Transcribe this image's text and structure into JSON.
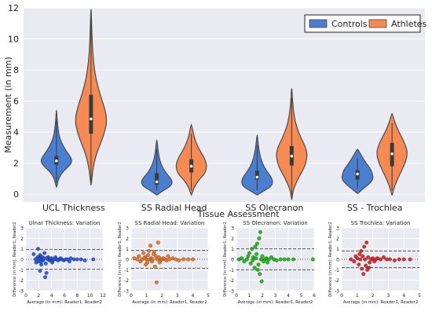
{
  "chart_data": [
    {
      "type": "violin",
      "title": "",
      "xlabel": "Tissue Assessment",
      "ylabel": "Measurement (in mm)",
      "ylim": [
        -0.5,
        12
      ],
      "yticks": [
        0,
        2,
        4,
        6,
        8,
        10,
        12
      ],
      "grid": true,
      "legend_position": "top-right",
      "categories": [
        "UCL Thickness",
        "SS Radial Head",
        "SS Olecranon",
        "SS - Trochlea"
      ],
      "series": [
        {
          "name": "Controls",
          "color": "#4a7fcf",
          "groups": [
            {
              "min": 0.45,
              "max": 5.4,
              "q1": 1.9,
              "median": 2.15,
              "q3": 2.45,
              "profile": [
                [
                  0.45,
                  0.02
                ],
                [
                  0.9,
                  0.1
                ],
                [
                  1.4,
                  0.35
                ],
                [
                  1.8,
                  0.8
                ],
                [
                  2.1,
                  1.0
                ],
                [
                  2.4,
                  0.9
                ],
                [
                  2.8,
                  0.6
                ],
                [
                  3.3,
                  0.32
                ],
                [
                  3.8,
                  0.16
                ],
                [
                  4.4,
                  0.08
                ],
                [
                  5.0,
                  0.03
                ],
                [
                  5.4,
                  0.01
                ]
              ]
            },
            {
              "min": -0.05,
              "max": 3.5,
              "q1": 0.6,
              "median": 0.8,
              "q3": 1.35,
              "profile": [
                [
                  -0.05,
                  0.02
                ],
                [
                  0.2,
                  0.35
                ],
                [
                  0.5,
                  0.85
                ],
                [
                  0.75,
                  1.0
                ],
                [
                  1.0,
                  0.9
                ],
                [
                  1.4,
                  0.55
                ],
                [
                  1.9,
                  0.28
                ],
                [
                  2.4,
                  0.14
                ],
                [
                  3.0,
                  0.06
                ],
                [
                  3.5,
                  0.01
                ]
              ]
            },
            {
              "min": -0.05,
              "max": 3.8,
              "q1": 0.95,
              "median": 1.1,
              "q3": 1.5,
              "profile": [
                [
                  -0.05,
                  0.02
                ],
                [
                  0.2,
                  0.4
                ],
                [
                  0.5,
                  0.9
                ],
                [
                  0.8,
                  1.0
                ],
                [
                  1.1,
                  0.9
                ],
                [
                  1.5,
                  0.6
                ],
                [
                  2.0,
                  0.32
                ],
                [
                  2.6,
                  0.16
                ],
                [
                  3.2,
                  0.07
                ],
                [
                  3.8,
                  0.01
                ]
              ]
            },
            {
              "min": 0.05,
              "max": 2.9,
              "q1": 0.95,
              "median": 1.3,
              "q3": 1.55,
              "profile": [
                [
                  0.05,
                  0.03
                ],
                [
                  0.35,
                  0.35
                ],
                [
                  0.7,
                  0.8
                ],
                [
                  1.0,
                  1.0
                ],
                [
                  1.3,
                  0.95
                ],
                [
                  1.6,
                  0.85
                ],
                [
                  2.0,
                  0.55
                ],
                [
                  2.4,
                  0.3
                ],
                [
                  2.9,
                  0.02
                ]
              ]
            }
          ]
        },
        {
          "name": "Athletes",
          "color": "#f58a55",
          "groups": [
            {
              "min": 0.6,
              "max": 11.9,
              "q1": 3.9,
              "median": 4.85,
              "q3": 6.4,
              "profile": [
                [
                  0.6,
                  0.02
                ],
                [
                  1.5,
                  0.1
                ],
                [
                  2.5,
                  0.3
                ],
                [
                  3.5,
                  0.7
                ],
                [
                  4.3,
                  0.95
                ],
                [
                  4.9,
                  1.0
                ],
                [
                  5.6,
                  0.85
                ],
                [
                  6.5,
                  0.55
                ],
                [
                  7.5,
                  0.3
                ],
                [
                  8.5,
                  0.16
                ],
                [
                  9.5,
                  0.09
                ],
                [
                  10.5,
                  0.05
                ],
                [
                  11.9,
                  0.01
                ]
              ]
            },
            {
              "min": -0.05,
              "max": 4.5,
              "q1": 1.4,
              "median": 1.8,
              "q3": 2.25,
              "profile": [
                [
                  -0.05,
                  0.02
                ],
                [
                  0.4,
                  0.15
                ],
                [
                  0.9,
                  0.45
                ],
                [
                  1.3,
                  0.85
                ],
                [
                  1.8,
                  1.0
                ],
                [
                  2.3,
                  0.85
                ],
                [
                  2.8,
                  0.55
                ],
                [
                  3.3,
                  0.3
                ],
                [
                  3.8,
                  0.15
                ],
                [
                  4.5,
                  0.01
                ]
              ]
            },
            {
              "min": -0.35,
              "max": 6.8,
              "q1": 1.85,
              "median": 2.45,
              "q3": 3.1,
              "profile": [
                [
                  -0.35,
                  0.01
                ],
                [
                  0.3,
                  0.1
                ],
                [
                  1.0,
                  0.4
                ],
                [
                  1.7,
                  0.8
                ],
                [
                  2.4,
                  1.0
                ],
                [
                  3.0,
                  0.9
                ],
                [
                  3.6,
                  0.6
                ],
                [
                  4.3,
                  0.32
                ],
                [
                  5.0,
                  0.16
                ],
                [
                  5.8,
                  0.07
                ],
                [
                  6.8,
                  0.01
                ]
              ]
            },
            {
              "min": -0.05,
              "max": 5.2,
              "q1": 1.8,
              "median": 2.6,
              "q3": 3.3,
              "profile": [
                [
                  -0.05,
                  0.02
                ],
                [
                  0.5,
                  0.15
                ],
                [
                  1.2,
                  0.45
                ],
                [
                  1.9,
                  0.8
                ],
                [
                  2.6,
                  1.0
                ],
                [
                  3.2,
                  0.85
                ],
                [
                  3.8,
                  0.55
                ],
                [
                  4.4,
                  0.25
                ],
                [
                  5.2,
                  0.01
                ]
              ]
            }
          ]
        }
      ]
    },
    {
      "type": "scatter",
      "title": "Ulnar Thickness: Variation",
      "xlabel": "Average (in mm): Reader1, Reader2",
      "ylabel": "Difference (in mm): Reader1, Reader2",
      "xlim": [
        0,
        12
      ],
      "ylim": [
        -3,
        3
      ],
      "xticks": [
        0,
        2,
        4,
        6,
        8,
        10,
        12
      ],
      "yticks": [
        -3,
        -2,
        -1,
        0,
        1,
        2,
        3
      ],
      "color": "#1f4fd6",
      "mean_line": 0,
      "loa_upper": 0.95,
      "loa_lower": -0.95,
      "points": [
        [
          1.2,
          0.5
        ],
        [
          1.5,
          0.0
        ],
        [
          1.6,
          -0.3
        ],
        [
          1.8,
          0.2
        ],
        [
          2.0,
          -0.2
        ],
        [
          2.1,
          0.1
        ],
        [
          2.2,
          -1.1
        ],
        [
          2.3,
          0.3
        ],
        [
          2.4,
          -0.5
        ],
        [
          2.5,
          0.0
        ],
        [
          2.6,
          0.2
        ],
        [
          2.7,
          -0.1
        ],
        [
          2.8,
          0.1
        ],
        [
          3.0,
          -1.7
        ],
        [
          3.2,
          -1.3
        ],
        [
          3.4,
          0.0
        ],
        [
          3.5,
          0.2
        ],
        [
          3.7,
          -0.1
        ],
        [
          3.8,
          0.0
        ],
        [
          4.0,
          0.1
        ],
        [
          4.2,
          -0.1
        ],
        [
          4.4,
          0.0
        ],
        [
          4.6,
          0.2
        ],
        [
          4.8,
          0.0
        ],
        [
          5.0,
          -0.1
        ],
        [
          5.2,
          0.0
        ],
        [
          5.4,
          0.1
        ],
        [
          5.6,
          0.0
        ],
        [
          5.9,
          -0.1
        ],
        [
          6.2,
          0.0
        ],
        [
          6.5,
          0.0
        ],
        [
          7.0,
          0.1
        ],
        [
          7.5,
          0.0
        ],
        [
          8.0,
          0.0
        ],
        [
          8.6,
          0.0
        ],
        [
          9.2,
          -0.1
        ],
        [
          10.5,
          0.0
        ],
        [
          2.9,
          0.6
        ],
        [
          1.9,
          1.0
        ],
        [
          2.2,
          0.4
        ],
        [
          3.1,
          -0.4
        ],
        [
          4.1,
          -0.3
        ],
        [
          6.8,
          -0.2
        ],
        [
          2.05,
          0.0
        ],
        [
          2.35,
          -0.25
        ],
        [
          3.3,
          0.15
        ]
      ]
    },
    {
      "type": "scatter",
      "title": "SS Radial Head: Variation",
      "xlabel": "Average (in mm): Reader1, Reader2",
      "ylabel": "Difference (in mm): Reader1, Reader2",
      "xlim": [
        0,
        5
      ],
      "ylim": [
        -3,
        3
      ],
      "xticks": [
        0,
        1,
        2,
        3,
        4,
        5
      ],
      "yticks": [
        -3,
        -2,
        -1,
        0,
        1,
        2,
        3
      ],
      "color": "#e8711c",
      "mean_line": 0,
      "loa_upper": 0.85,
      "loa_lower": -0.85,
      "points": [
        [
          0.2,
          0.1
        ],
        [
          0.4,
          0.0
        ],
        [
          0.5,
          0.3
        ],
        [
          0.6,
          -0.2
        ],
        [
          0.7,
          0.0
        ],
        [
          0.8,
          0.6
        ],
        [
          0.9,
          0.2
        ],
        [
          1.0,
          0.0
        ],
        [
          1.05,
          -0.3
        ],
        [
          1.1,
          0.4
        ],
        [
          1.2,
          0.0
        ],
        [
          1.25,
          1.3
        ],
        [
          1.3,
          0.1
        ],
        [
          1.35,
          -0.2
        ],
        [
          1.4,
          0.0
        ],
        [
          1.5,
          0.7
        ],
        [
          1.55,
          -0.7
        ],
        [
          1.6,
          0.3
        ],
        [
          1.65,
          -2.2
        ],
        [
          1.7,
          0.0
        ],
        [
          1.75,
          1.6
        ],
        [
          1.8,
          0.2
        ],
        [
          1.9,
          -0.1
        ],
        [
          2.0,
          0.0
        ],
        [
          2.1,
          0.1
        ],
        [
          2.2,
          0.0
        ],
        [
          2.3,
          -0.1
        ],
        [
          2.5,
          0.0
        ],
        [
          2.7,
          0.1
        ],
        [
          2.9,
          0.0
        ],
        [
          3.1,
          -0.1
        ],
        [
          3.4,
          0.0
        ],
        [
          3.7,
          0.0
        ],
        [
          4.0,
          0.0
        ],
        [
          0.95,
          -0.5
        ],
        [
          1.15,
          0.8
        ],
        [
          1.45,
          0.5
        ],
        [
          2.4,
          0.3
        ],
        [
          0.85,
          0.1
        ],
        [
          1.85,
          -0.3
        ]
      ]
    },
    {
      "type": "scatter",
      "title": "SS Olecranon: Variation",
      "xlabel": "Average (in mm): Reader1, Reader2",
      "ylabel": "Difference (in mm): Reader1, Reader2",
      "xlim": [
        0,
        6
      ],
      "ylim": [
        -3,
        3
      ],
      "xticks": [
        0,
        1,
        2,
        3,
        4,
        5,
        6
      ],
      "yticks": [
        -3,
        -2,
        -1,
        0,
        1,
        2,
        3
      ],
      "color": "#13b30e",
      "mean_line": 0,
      "loa_upper": 1.0,
      "loa_lower": -1.0,
      "points": [
        [
          0.2,
          0.0
        ],
        [
          0.4,
          0.1
        ],
        [
          0.6,
          -0.2
        ],
        [
          0.8,
          0.0
        ],
        [
          1.0,
          0.6
        ],
        [
          1.1,
          -0.4
        ],
        [
          1.2,
          1.0
        ],
        [
          1.3,
          0.2
        ],
        [
          1.4,
          -0.8
        ],
        [
          1.5,
          0.1
        ],
        [
          1.6,
          1.5
        ],
        [
          1.7,
          -0.5
        ],
        [
          1.75,
          2.0
        ],
        [
          1.8,
          -1.4
        ],
        [
          1.85,
          2.6
        ],
        [
          1.9,
          0.0
        ],
        [
          1.95,
          -2.1
        ],
        [
          2.0,
          0.3
        ],
        [
          2.1,
          -0.2
        ],
        [
          2.2,
          0.0
        ],
        [
          2.3,
          0.1
        ],
        [
          2.5,
          0.0
        ],
        [
          2.7,
          0.2
        ],
        [
          2.9,
          0.0
        ],
        [
          3.1,
          -0.1
        ],
        [
          3.4,
          0.0
        ],
        [
          3.7,
          0.0
        ],
        [
          4.0,
          0.0
        ],
        [
          4.4,
          0.0
        ],
        [
          5.9,
          0.0
        ],
        [
          1.45,
          1.2
        ],
        [
          1.65,
          -1.0
        ],
        [
          1.55,
          0.5
        ],
        [
          2.4,
          -0.3
        ],
        [
          0.9,
          0.3
        ],
        [
          1.25,
          -0.1
        ]
      ]
    },
    {
      "type": "scatter",
      "title": "SS Trochlea: Variation",
      "xlabel": "Average (in mm): Reader1, Reader2",
      "ylabel": "Difference (in mm): Reader1, Reader2",
      "xlim": [
        0,
        5
      ],
      "ylim": [
        -3,
        3
      ],
      "xticks": [
        0,
        1,
        2,
        3,
        4,
        5
      ],
      "yticks": [
        -3,
        -2,
        -1,
        0,
        1,
        2,
        3
      ],
      "color": "#d81e1e",
      "mean_line": 0,
      "loa_upper": 0.8,
      "loa_lower": -0.8,
      "points": [
        [
          0.6,
          0.0
        ],
        [
          0.8,
          -0.2
        ],
        [
          1.0,
          0.1
        ],
        [
          1.1,
          -0.5
        ],
        [
          1.2,
          0.0
        ],
        [
          1.25,
          0.8
        ],
        [
          1.3,
          -0.9
        ],
        [
          1.35,
          0.3
        ],
        [
          1.4,
          -1.4
        ],
        [
          1.45,
          1.2
        ],
        [
          1.5,
          0.0
        ],
        [
          1.55,
          -0.6
        ],
        [
          1.6,
          1.6
        ],
        [
          1.65,
          -1.0
        ],
        [
          1.7,
          0.2
        ],
        [
          1.8,
          -0.3
        ],
        [
          1.9,
          0.0
        ],
        [
          2.0,
          0.1
        ],
        [
          2.1,
          -0.2
        ],
        [
          2.2,
          0.0
        ],
        [
          2.3,
          0.1
        ],
        [
          2.5,
          0.0
        ],
        [
          2.7,
          0.2
        ],
        [
          2.9,
          0.0
        ],
        [
          3.1,
          0.0
        ],
        [
          3.4,
          -0.1
        ],
        [
          3.7,
          0.0
        ],
        [
          4.0,
          0.0
        ],
        [
          4.4,
          0.0
        ],
        [
          1.15,
          0.5
        ],
        [
          1.75,
          -0.8
        ],
        [
          0.9,
          0.3
        ]
      ]
    }
  ]
}
